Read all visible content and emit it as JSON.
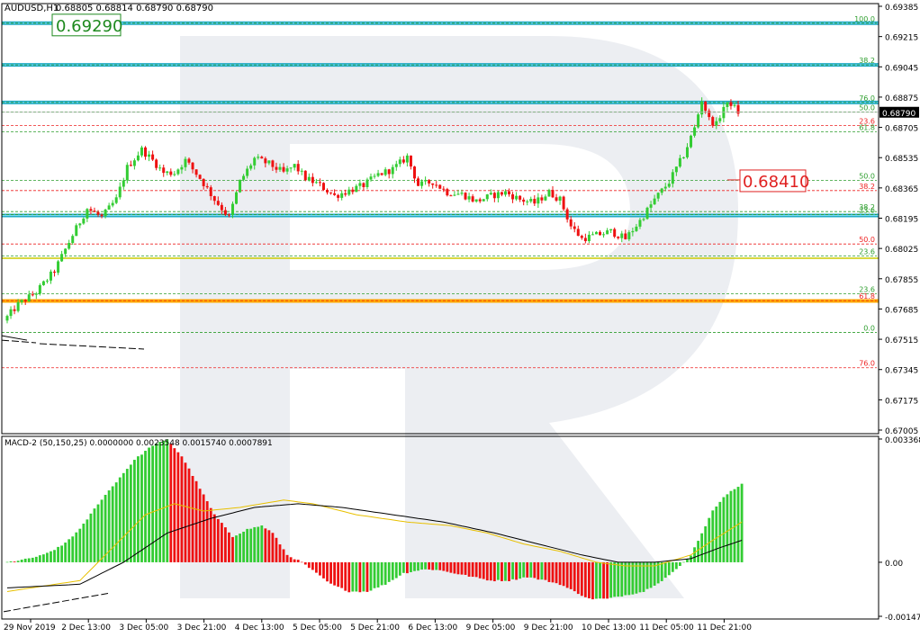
{
  "header": {
    "symbol": "AUDUSD,H1",
    "ohlc": "0.68805 0.68814 0.68790 0.68790"
  },
  "macd_header": "MACD-2 (50,150,25) 0.0000000 0.0023548 0.0015740 0.0007891",
  "colors": {
    "bull": "#33cc33",
    "bear": "#ee1111",
    "cyan_band": "#0aa3c2",
    "orange_band": "#ffaa00",
    "yellow_line": "#cccc00",
    "green_fib": "#2e9e2e",
    "red_fib": "#ee2222",
    "macd_signal": "#e8c000",
    "macd_main": "#000000",
    "watermark": "#e6e8ee"
  },
  "annotations": {
    "top_label": "0.69290",
    "mid_label": "0.68410",
    "current_price": "0.68790"
  },
  "fib_levels": [
    {
      "label": "100.0",
      "price": 0.6929,
      "color": "green"
    },
    {
      "label": "38.2",
      "price": 0.69056,
      "color": "green"
    },
    {
      "label": "76.0",
      "price": 0.68845,
      "color": "green"
    },
    {
      "label": "50.0",
      "price": 0.68792,
      "color": "green"
    },
    {
      "label": "23.6",
      "price": 0.68715,
      "color": "red"
    },
    {
      "label": "61.8",
      "price": 0.6868,
      "color": "green"
    },
    {
      "label": "50.0",
      "price": 0.68408,
      "color": "green"
    },
    {
      "label": "38.2",
      "price": 0.6835,
      "color": "red"
    },
    {
      "label": "38.2",
      "price": 0.68232,
      "color": "green"
    },
    {
      "label": "23.6",
      "price": 0.68215,
      "color": "green"
    },
    {
      "label": "50.0",
      "price": 0.6805,
      "color": "red"
    },
    {
      "label": "23.6",
      "price": 0.67982,
      "color": "green"
    },
    {
      "label": "23.6",
      "price": 0.6777,
      "color": "green"
    },
    {
      "label": "61.8",
      "price": 0.67732,
      "color": "red"
    },
    {
      "label": "0.0",
      "price": 0.67553,
      "color": "green"
    },
    {
      "label": "76.0",
      "price": 0.67355,
      "color": "red"
    }
  ],
  "chart_data": [
    {
      "type": "candlestick",
      "title": "AUDUSD,H1",
      "ylim": [
        0.67,
        0.69385
      ],
      "y_ticks": [
        "0.69385",
        "0.69215",
        "0.69045",
        "0.68875",
        "0.68705",
        "0.68535",
        "0.68365",
        "0.68195",
        "0.68025",
        "0.67855",
        "0.67685",
        "0.67515",
        "0.67345",
        "0.67175",
        "0.67005"
      ],
      "x_ticks": [
        "29 Nov 2019",
        "2 Dec 13:00",
        "3 Dec 05:00",
        "3 Dec 21:00",
        "4 Dec 13:00",
        "5 Dec 05:00",
        "5 Dec 21:00",
        "6 Dec 13:00",
        "9 Dec 05:00",
        "9 Dec 21:00",
        "10 Dec 13:00",
        "11 Dec 05:00",
        "11 Dec 21:00"
      ],
      "horizontal_bands": [
        {
          "price": 0.6929,
          "color": "cyan"
        },
        {
          "price": 0.69056,
          "color": "cyan"
        },
        {
          "price": 0.68845,
          "color": "cyan"
        },
        {
          "price": 0.6821,
          "color": "cyan"
        },
        {
          "price": 0.6773,
          "color": "orange"
        },
        {
          "price": 0.6797,
          "color": "yellow"
        }
      ],
      "close_anchors": [
        [
          0,
          0.6764
        ],
        [
          3,
          0.6771
        ],
        [
          8,
          0.6778
        ],
        [
          13,
          0.679
        ],
        [
          18,
          0.681
        ],
        [
          22,
          0.6825
        ],
        [
          26,
          0.682
        ],
        [
          30,
          0.683
        ],
        [
          33,
          0.6848
        ],
        [
          37,
          0.6858
        ],
        [
          40,
          0.6852
        ],
        [
          43,
          0.6845
        ],
        [
          46,
          0.6845
        ],
        [
          49,
          0.6852
        ],
        [
          53,
          0.6842
        ],
        [
          57,
          0.683
        ],
        [
          61,
          0.682
        ],
        [
          64,
          0.684
        ],
        [
          68,
          0.6853
        ],
        [
          72,
          0.685
        ],
        [
          76,
          0.6845
        ],
        [
          79,
          0.6849
        ],
        [
          82,
          0.6842
        ],
        [
          86,
          0.6838
        ],
        [
          90,
          0.6832
        ],
        [
          94,
          0.6835
        ],
        [
          98,
          0.6838
        ],
        [
          102,
          0.6844
        ],
        [
          106,
          0.6847
        ],
        [
          110,
          0.6854
        ],
        [
          113,
          0.6838
        ],
        [
          117,
          0.684
        ],
        [
          121,
          0.6834
        ],
        [
          125,
          0.6833
        ],
        [
          129,
          0.6829
        ],
        [
          133,
          0.6832
        ],
        [
          137,
          0.6834
        ],
        [
          141,
          0.683
        ],
        [
          145,
          0.6828
        ],
        [
          149,
          0.6834
        ],
        [
          152,
          0.683
        ],
        [
          155,
          0.6815
        ],
        [
          158,
          0.6808
        ],
        [
          162,
          0.681
        ],
        [
          166,
          0.6812
        ],
        [
          170,
          0.6808
        ],
        [
          174,
          0.6818
        ],
        [
          178,
          0.683
        ],
        [
          182,
          0.684
        ],
        [
          186,
          0.6855
        ],
        [
          189,
          0.687
        ],
        [
          191,
          0.6886
        ],
        [
          193,
          0.6875
        ],
        [
          195,
          0.6872
        ],
        [
          197,
          0.6882
        ],
        [
          199,
          0.6884
        ],
        [
          201,
          0.6879
        ]
      ]
    },
    {
      "type": "macd",
      "title": "MACD-2 (50,150,25)",
      "values_in_header": [
        0.0,
        0.0023548,
        0.001574,
        0.0007891
      ],
      "ylim": [
        -0.001477,
        0.003368
      ],
      "y_ticks": [
        "0.0033688",
        "0.00",
        "-0.001477"
      ],
      "histogram_anchors": [
        [
          0,
          0.0
        ],
        [
          5,
          8e-05
        ],
        [
          10,
          0.0002
        ],
        [
          15,
          0.00045
        ],
        [
          20,
          0.0009
        ],
        [
          25,
          0.0016
        ],
        [
          30,
          0.0022
        ],
        [
          35,
          0.0028
        ],
        [
          40,
          0.0032
        ],
        [
          44,
          0.00335
        ],
        [
          48,
          0.0029
        ],
        [
          52,
          0.0022
        ],
        [
          57,
          0.0013
        ],
        [
          62,
          0.0007
        ],
        [
          66,
          0.0009
        ],
        [
          70,
          0.001
        ],
        [
          73,
          0.0008
        ],
        [
          77,
          0.0002
        ],
        [
          81,
          0.0
        ],
        [
          85,
          -0.0003
        ],
        [
          89,
          -0.0006
        ],
        [
          94,
          -0.0008
        ],
        [
          99,
          -0.0008
        ],
        [
          104,
          -0.0006
        ],
        [
          109,
          -0.0003
        ],
        [
          114,
          -0.0002
        ],
        [
          118,
          -0.0002
        ],
        [
          123,
          -0.0003
        ],
        [
          128,
          -0.0004
        ],
        [
          133,
          -0.0005
        ],
        [
          138,
          -0.0005
        ],
        [
          143,
          -0.0004
        ],
        [
          148,
          -0.0005
        ],
        [
          152,
          -0.0006
        ],
        [
          156,
          -0.0008
        ],
        [
          160,
          -0.001
        ],
        [
          165,
          -0.001
        ],
        [
          170,
          -0.0009
        ],
        [
          175,
          -0.0008
        ],
        [
          180,
          -0.0005
        ],
        [
          184,
          -0.0002
        ],
        [
          188,
          0.0002
        ],
        [
          191,
          0.0008
        ],
        [
          194,
          0.0014
        ],
        [
          197,
          0.0018
        ],
        [
          200,
          0.002
        ],
        [
          202,
          0.00215
        ]
      ],
      "signal_anchors": [
        [
          0,
          -0.0008
        ],
        [
          20,
          -0.0005
        ],
        [
          30,
          0.0005
        ],
        [
          38,
          0.0013
        ],
        [
          46,
          0.0016
        ],
        [
          54,
          0.0014
        ],
        [
          64,
          0.0015
        ],
        [
          76,
          0.0017
        ],
        [
          84,
          0.0016
        ],
        [
          96,
          0.0013
        ],
        [
          110,
          0.0011
        ],
        [
          122,
          0.001
        ],
        [
          132,
          0.0008
        ],
        [
          142,
          0.0005
        ],
        [
          152,
          0.0003
        ],
        [
          162,
          0.0
        ],
        [
          170,
          -0.0001
        ],
        [
          178,
          -0.0001
        ],
        [
          188,
          0.0002
        ],
        [
          194,
          0.0006
        ],
        [
          202,
          0.0011
        ]
      ],
      "main_anchors": [
        [
          0,
          -0.0007
        ],
        [
          20,
          -0.0006
        ],
        [
          32,
          0.0
        ],
        [
          44,
          0.0008
        ],
        [
          56,
          0.0012
        ],
        [
          68,
          0.0015
        ],
        [
          80,
          0.0016
        ],
        [
          92,
          0.0015
        ],
        [
          106,
          0.0013
        ],
        [
          120,
          0.0011
        ],
        [
          134,
          0.0008
        ],
        [
          146,
          0.0005
        ],
        [
          158,
          0.0002
        ],
        [
          168,
          0.0
        ],
        [
          178,
          0.0
        ],
        [
          188,
          0.0001
        ],
        [
          196,
          0.0004
        ],
        [
          202,
          0.0006
        ]
      ]
    }
  ]
}
